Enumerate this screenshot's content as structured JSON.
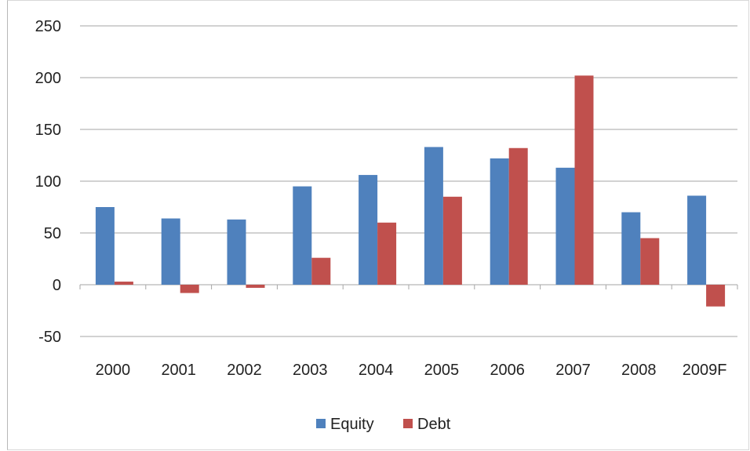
{
  "chart_data": {
    "type": "bar",
    "categories": [
      "2000",
      "2001",
      "2002",
      "2003",
      "2004",
      "2005",
      "2006",
      "2007",
      "2008",
      "2009F"
    ],
    "series": [
      {
        "name": "Equity",
        "color": "#4f81bd",
        "values": [
          75,
          64,
          63,
          95,
          106,
          133,
          122,
          113,
          70,
          86
        ]
      },
      {
        "name": "Debt",
        "color": "#c0504d",
        "values": [
          3,
          -8,
          -3,
          26,
          60,
          85,
          132,
          202,
          45,
          -21
        ]
      }
    ],
    "ylim": [
      -50,
      250
    ],
    "yticks": [
      -50,
      0,
      50,
      100,
      150,
      200,
      250
    ],
    "grid": true,
    "legend_position": "bottom"
  }
}
